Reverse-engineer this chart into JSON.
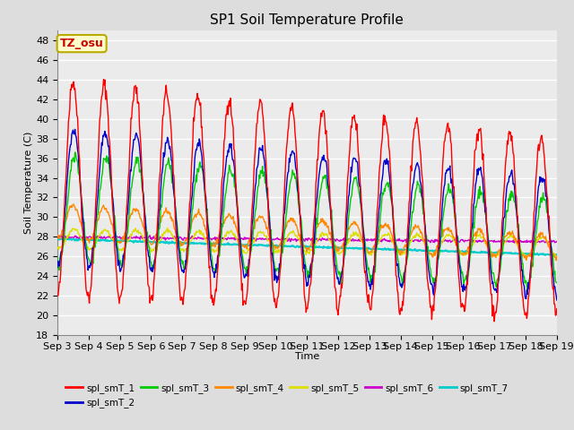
{
  "title": "SP1 Soil Temperature Profile",
  "xlabel": "Time",
  "ylabel": "Soil Temperature (C)",
  "ylim": [
    18,
    49
  ],
  "yticks": [
    18,
    20,
    22,
    24,
    26,
    28,
    30,
    32,
    34,
    36,
    38,
    40,
    42,
    44,
    46,
    48
  ],
  "annotation_text": "TZ_osu",
  "annotation_bg": "#ffffcc",
  "annotation_border": "#bbaa00",
  "annotation_fg": "#cc0000",
  "line_colors": {
    "spl_smT_1": "#ff0000",
    "spl_smT_2": "#0000cc",
    "spl_smT_3": "#00cc00",
    "spl_smT_4": "#ff8800",
    "spl_smT_5": "#dddd00",
    "spl_smT_6": "#cc00cc",
    "spl_smT_7": "#00cccc"
  },
  "bg_color": "#dddddd",
  "plot_bg_color": "#ebebeb",
  "grid_color": "#ffffff",
  "n_days": 16,
  "start_day": 3,
  "samples_per_day": 48
}
